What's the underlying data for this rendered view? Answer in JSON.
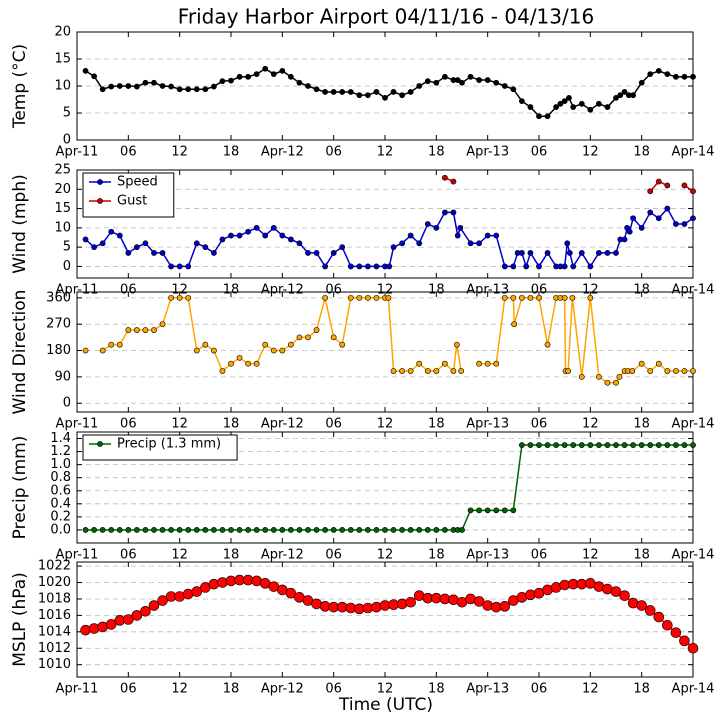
{
  "title": "Friday Harbor Airport 04/11/16 - 04/13/16",
  "xlabel": "Time (UTC)",
  "chart_data": [
    {
      "type": "line",
      "ylabel": "Temp (°C)",
      "xlim": [
        0,
        72
      ],
      "ylim": [
        0,
        20
      ],
      "yticks": [
        0,
        5,
        10,
        15,
        20
      ],
      "grid": true,
      "xticks": [
        {
          "value": 0,
          "label": "Apr-11"
        },
        {
          "value": 6,
          "label": "06"
        },
        12,
        18,
        {
          "value": 24,
          "label": "Apr-12"
        },
        {
          "value": 30,
          "label": "06"
        },
        {
          "value": 36,
          "label": "12"
        },
        {
          "value": 42,
          "label": "18"
        },
        {
          "value": 48,
          "label": "Apr-13"
        },
        {
          "value": 54,
          "label": "06"
        },
        {
          "value": 60,
          "label": "12"
        },
        {
          "value": 66,
          "label": "18"
        },
        {
          "value": 72,
          "label": "Apr-14"
        }
      ],
      "series": [
        {
          "color": "#000000",
          "x": [
            1,
            2,
            3,
            4,
            5,
            6,
            7,
            8,
            9,
            10,
            11,
            12,
            13,
            14,
            15,
            16,
            17,
            18,
            19,
            20,
            21,
            22,
            23,
            24,
            25,
            26,
            27,
            28,
            29,
            30,
            31,
            32,
            33,
            34,
            35,
            36,
            37,
            38,
            39,
            40,
            41,
            42,
            43,
            44,
            44.5,
            45,
            46,
            47,
            48,
            49,
            50,
            51,
            52,
            53,
            54,
            55,
            56,
            56.5,
            57,
            57.5,
            58,
            59,
            60,
            61,
            62,
            63,
            63.5,
            64,
            64.5,
            65,
            66,
            67,
            68,
            69,
            70,
            71,
            72
          ],
          "values": [
            12.8,
            11.8,
            9.4,
            9.9,
            10,
            10,
            9.9,
            10.6,
            10.6,
            10,
            9.9,
            9.4,
            9.4,
            9.4,
            9.4,
            9.9,
            10.9,
            11,
            11.7,
            11.7,
            12.2,
            13.2,
            12.2,
            12.8,
            11.7,
            10.6,
            10,
            9.4,
            8.9,
            8.9,
            8.9,
            8.9,
            8.3,
            8.3,
            8.9,
            7.8,
            8.9,
            8.3,
            8.9,
            10,
            10.9,
            10.6,
            11.7,
            11.1,
            11.1,
            10.6,
            11.7,
            11.1,
            11.1,
            10.6,
            10,
            9.4,
            7.2,
            6.1,
            4.4,
            4.4,
            6.1,
            6.7,
            7.2,
            7.8,
            6.1,
            6.7,
            5.6,
            6.7,
            6.1,
            7.8,
            8.3,
            8.9,
            8.3,
            8.3,
            10.6,
            12.2,
            12.8,
            12.2,
            11.7,
            11.7,
            11.7
          ]
        }
      ]
    },
    {
      "type": "line",
      "ylabel": "Wind (mph)",
      "xlim": [
        0,
        72
      ],
      "ylim": [
        -3,
        25
      ],
      "yticks": [
        0,
        5,
        10,
        15,
        20,
        25
      ],
      "grid": true,
      "legend": "upper left",
      "xticks": [
        {
          "value": 0,
          "label": "Apr-11"
        },
        {
          "value": 6,
          "label": "06"
        },
        12,
        18,
        {
          "value": 24,
          "label": "Apr-12"
        },
        {
          "value": 30,
          "label": "06"
        },
        {
          "value": 36,
          "label": "12"
        },
        {
          "value": 42,
          "label": "18"
        },
        {
          "value": 48,
          "label": "Apr-13"
        },
        {
          "value": 54,
          "label": "06"
        },
        {
          "value": 60,
          "label": "12"
        },
        {
          "value": 66,
          "label": "18"
        },
        {
          "value": 72,
          "label": "Apr-14"
        }
      ],
      "series": [
        {
          "name": "Speed",
          "color": "#0000cc",
          "x": [
            1,
            2,
            3,
            4,
            5,
            6,
            7,
            8,
            9,
            10,
            11,
            12,
            13,
            14,
            15,
            16,
            17,
            18,
            19,
            20,
            21,
            22,
            23,
            24,
            25,
            26,
            27,
            28,
            29,
            30,
            31,
            32,
            33,
            34,
            35,
            36,
            36.5,
            37,
            38,
            39,
            40,
            41,
            42,
            43,
            44,
            44.5,
            44.8,
            46,
            47,
            48,
            49,
            50,
            51,
            51.5,
            52,
            52.5,
            53,
            54,
            55,
            56,
            56.5,
            57,
            57.3,
            57.6,
            58,
            59,
            60,
            61,
            62,
            63,
            63.5,
            64,
            64.3,
            64.6,
            65,
            66,
            67,
            68,
            69,
            70,
            71,
            72
          ],
          "values": [
            7,
            5,
            6,
            9,
            8,
            3.5,
            5,
            6,
            3.5,
            3.5,
            0,
            0,
            0,
            6,
            5,
            3.5,
            7,
            8,
            8,
            9,
            10,
            8,
            10,
            8,
            7,
            6,
            3.5,
            3.5,
            0,
            3.5,
            5,
            0,
            0,
            0,
            0,
            0,
            0,
            5,
            6,
            8,
            6,
            11,
            10,
            14,
            14,
            8,
            10,
            6,
            6,
            8,
            8,
            0,
            0,
            3.5,
            3.5,
            0,
            3.5,
            0,
            3.5,
            0,
            0,
            0,
            6,
            3.5,
            0,
            3.5,
            0,
            3.5,
            3.5,
            3.5,
            7,
            7,
            10,
            9,
            12.5,
            10,
            14,
            12.5,
            15,
            11,
            11,
            12.5
          ]
        },
        {
          "name": "Gust",
          "color": "#cc0000",
          "x": [
            43,
            44,
            45,
            67,
            68,
            69,
            70,
            71,
            72
          ],
          "values": [
            23,
            22,
            null,
            19.5,
            22,
            21,
            null,
            21,
            19.5
          ]
        }
      ]
    },
    {
      "type": "line",
      "ylabel": "Wind Direction",
      "xlim": [
        0,
        72
      ],
      "ylim": [
        -30,
        380
      ],
      "yticks": [
        0,
        90,
        180,
        270,
        360
      ],
      "grid": true,
      "xticks": [
        {
          "value": 0,
          "label": "Apr-11"
        },
        {
          "value": 6,
          "label": "06"
        },
        12,
        18,
        {
          "value": 24,
          "label": "Apr-12"
        },
        {
          "value": 30,
          "label": "06"
        },
        {
          "value": 36,
          "label": "12"
        },
        {
          "value": 42,
          "label": "18"
        },
        {
          "value": 48,
          "label": "Apr-13"
        },
        {
          "value": 54,
          "label": "06"
        },
        {
          "value": 60,
          "label": "12"
        },
        {
          "value": 66,
          "label": "18"
        },
        {
          "value": 72,
          "label": "Apr-14"
        }
      ],
      "series": [
        {
          "color": "#ffa500",
          "x": [
            1,
            2,
            3,
            4,
            5,
            6,
            7,
            8,
            9,
            10,
            11,
            12,
            13,
            14,
            15,
            16,
            17,
            18,
            19,
            20,
            21,
            22,
            23,
            24,
            25,
            26,
            27,
            28,
            29,
            30,
            31,
            32,
            33,
            34,
            35,
            36,
            36.4,
            37,
            38,
            39,
            40,
            41,
            42,
            43,
            44,
            44.4,
            44.9,
            46,
            47,
            48,
            49,
            50,
            51,
            51.1,
            52,
            53,
            54,
            55,
            56,
            56.5,
            57,
            57.1,
            57.4,
            57.9,
            59,
            60,
            61,
            62,
            63,
            63.4,
            64,
            64.4,
            64.9,
            66,
            67,
            68,
            69,
            70,
            71,
            72
          ],
          "values": [
            180,
            null,
            180,
            200,
            200,
            250,
            250,
            250,
            250,
            270,
            360,
            360,
            360,
            180,
            200,
            180,
            110,
            135,
            155,
            135,
            135,
            200,
            180,
            180,
            200,
            225,
            225,
            250,
            360,
            225,
            200,
            360,
            360,
            360,
            360,
            360,
            360,
            110,
            110,
            110,
            135,
            110,
            110,
            135,
            110,
            200,
            110,
            null,
            135,
            135,
            135,
            360,
            360,
            270,
            360,
            360,
            360,
            200,
            360,
            360,
            360,
            110,
            110,
            360,
            90,
            360,
            90,
            70,
            70,
            90,
            110,
            110,
            110,
            135,
            110,
            135,
            110,
            110,
            110,
            110
          ]
        }
      ]
    },
    {
      "type": "line",
      "ylabel": "Precip (mm)",
      "xlim": [
        0,
        72
      ],
      "ylim": [
        -0.2,
        1.5
      ],
      "yticks": [
        {
          "value": 0,
          "label": "0.0"
        },
        0.2,
        0.4,
        0.6,
        0.8,
        {
          "value": 1,
          "label": "1.0"
        },
        1.2,
        1.4
      ],
      "grid": true,
      "legend": "upper left",
      "xticks": [
        {
          "value": 0,
          "label": "Apr-11"
        },
        {
          "value": 6,
          "label": "06"
        },
        12,
        18,
        {
          "value": 24,
          "label": "Apr-12"
        },
        {
          "value": 30,
          "label": "06"
        },
        {
          "value": 36,
          "label": "12"
        },
        {
          "value": 42,
          "label": "18"
        },
        {
          "value": 48,
          "label": "Apr-13"
        },
        {
          "value": 54,
          "label": "06"
        },
        {
          "value": 60,
          "label": "12"
        },
        {
          "value": 66,
          "label": "18"
        },
        {
          "value": 72,
          "label": "Apr-14"
        }
      ],
      "series": [
        {
          "name": "Precip (1.3 mm)",
          "color": "#006400",
          "x": [
            1,
            2,
            3,
            4,
            5,
            6,
            7,
            8,
            9,
            10,
            11,
            12,
            13,
            14,
            15,
            16,
            17,
            18,
            19,
            20,
            21,
            22,
            23,
            24,
            25,
            26,
            27,
            28,
            29,
            30,
            31,
            32,
            33,
            34,
            35,
            36,
            37,
            38,
            39,
            40,
            41,
            42,
            43,
            44,
            44.5,
            45,
            46,
            47,
            48,
            49,
            50,
            51,
            52,
            53,
            54,
            55,
            56,
            57,
            58,
            59,
            60,
            61,
            62,
            63,
            64,
            65,
            66,
            67,
            68,
            69,
            70,
            71,
            72
          ],
          "values": [
            0,
            0,
            0,
            0,
            0,
            0,
            0,
            0,
            0,
            0,
            0,
            0,
            0,
            0,
            0,
            0,
            0,
            0,
            0,
            0,
            0,
            0,
            0,
            0,
            0,
            0,
            0,
            0,
            0,
            0,
            0,
            0,
            0,
            0,
            0,
            0,
            0,
            0,
            0,
            0,
            0,
            0,
            0,
            0,
            0,
            0,
            0.3,
            0.3,
            0.3,
            0.3,
            0.3,
            0.3,
            1.3,
            1.3,
            1.3,
            1.3,
            1.3,
            1.3,
            1.3,
            1.3,
            1.3,
            1.3,
            1.3,
            1.3,
            1.3,
            1.3,
            1.3,
            1.3,
            1.3,
            1.3,
            1.3,
            1.3,
            1.3
          ]
        }
      ]
    },
    {
      "type": "line",
      "ylabel": "MSLP (hPa)",
      "xlim": [
        0,
        72
      ],
      "ylim": [
        1008.5,
        1022.5
      ],
      "yticks": [
        1010,
        1012,
        1014,
        1016,
        1018,
        1020,
        1022
      ],
      "grid": true,
      "xticks": [
        {
          "value": 0,
          "label": "Apr-11"
        },
        {
          "value": 6,
          "label": "06"
        },
        12,
        18,
        {
          "value": 24,
          "label": "Apr-12"
        },
        {
          "value": 30,
          "label": "06"
        },
        {
          "value": 36,
          "label": "12"
        },
        {
          "value": 42,
          "label": "18"
        },
        {
          "value": 48,
          "label": "Apr-13"
        },
        {
          "value": 54,
          "label": "06"
        },
        {
          "value": 60,
          "label": "12"
        },
        {
          "value": 66,
          "label": "18"
        },
        {
          "value": 72,
          "label": "Apr-14"
        }
      ],
      "series": [
        {
          "color": "#ff0000",
          "x": [
            1,
            2,
            3,
            4,
            5,
            6,
            7,
            8,
            9,
            10,
            11,
            12,
            13,
            14,
            15,
            16,
            17,
            18,
            19,
            20,
            21,
            22,
            23,
            24,
            25,
            26,
            27,
            28,
            29,
            30,
            31,
            32,
            33,
            34,
            35,
            36,
            37,
            38,
            39,
            40,
            41,
            42,
            43,
            44,
            45,
            46,
            47,
            48,
            49,
            50,
            51,
            52,
            53,
            54,
            55,
            56,
            57,
            58,
            59,
            60,
            61,
            62,
            63,
            64,
            65,
            66,
            67,
            68,
            69,
            70,
            71,
            72
          ],
          "values": [
            1014.2,
            1014.4,
            1014.6,
            1014.9,
            1015.4,
            1015.5,
            1016,
            1016.5,
            1017.2,
            1017.8,
            1018.3,
            1018.3,
            1018.6,
            1018.9,
            1019.4,
            1019.8,
            1020,
            1020.2,
            1020.3,
            1020.3,
            1020.2,
            1019.9,
            1019.5,
            1019.1,
            1018.7,
            1018.2,
            1017.8,
            1017.4,
            1017.1,
            1017,
            1017,
            1016.9,
            1016.8,
            1016.9,
            1017,
            1017.2,
            1017.3,
            1017.4,
            1017.6,
            1018.4,
            1018.1,
            1018.1,
            1018,
            1017.9,
            1017.6,
            1018,
            1017.7,
            1017.2,
            1017,
            1017.1,
            1017.8,
            1018.2,
            1018.5,
            1018.7,
            1019.1,
            1019.4,
            1019.7,
            1019.8,
            1019.8,
            1019.9,
            1019.5,
            1019.2,
            1018.9,
            1018.4,
            1017.5,
            1017.2,
            1016.6,
            1015.8,
            1014.8,
            1013.9,
            1012.9,
            1012
          ]
        }
      ]
    }
  ]
}
